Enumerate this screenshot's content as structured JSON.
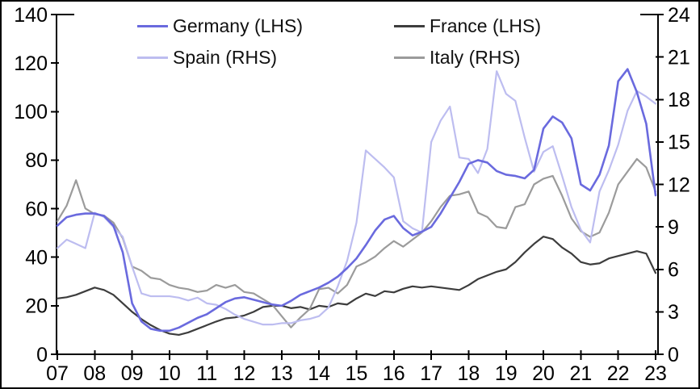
{
  "chart_data": {
    "type": "line",
    "title": "",
    "x_axis": {
      "tick_labels": [
        "07",
        "08",
        "09",
        "10",
        "11",
        "12",
        "13",
        "14",
        "15",
        "16",
        "17",
        "18",
        "19",
        "20",
        "21",
        "22",
        "23"
      ],
      "points_per_year": 4,
      "range_note": "quarterly points from 2007 to 2023"
    },
    "axes": {
      "left": {
        "min": 0,
        "max": 140,
        "ticks": [
          0,
          20,
          40,
          60,
          80,
          100,
          120,
          140
        ]
      },
      "right": {
        "min": 0,
        "max": 24,
        "ticks": [
          0,
          3,
          6,
          9,
          12,
          15,
          18,
          21,
          24
        ]
      }
    },
    "grid": false,
    "legend_position": "top",
    "series": [
      {
        "name": "germany",
        "label": "Germany (LHS)",
        "axis": "left",
        "color": "#6a6ade",
        "line_width": 2.6,
        "values": [
          53,
          56.5,
          57.5,
          58,
          58,
          57,
          53,
          42,
          21,
          13.5,
          10.5,
          9.7,
          9.7,
          11,
          13,
          15,
          16.5,
          19,
          21.5,
          23,
          23.5,
          22.5,
          21.5,
          20.5,
          20,
          22,
          24.5,
          26,
          27.5,
          29.5,
          32,
          35.5,
          39.5,
          45,
          51,
          55.5,
          57,
          52,
          49,
          50.5,
          52.5,
          58,
          64.5,
          71,
          78.5,
          80,
          79,
          75.5,
          74,
          73.5,
          72.5,
          76,
          93,
          98,
          95.5,
          89,
          70,
          67.5,
          74,
          86,
          112.5,
          117.5,
          108,
          95,
          65.5
        ]
      },
      {
        "name": "france",
        "label": "France (LHS)",
        "axis": "left",
        "color": "#3d3d3d",
        "line_width": 2.2,
        "values": [
          23,
          23.5,
          24.5,
          26,
          27.5,
          26.5,
          24.5,
          21,
          17.5,
          14.5,
          12,
          10,
          8.5,
          8,
          9,
          10.5,
          12,
          13.5,
          14.8,
          15.2,
          16,
          17.5,
          19.5,
          20,
          20,
          19,
          19.5,
          18.5,
          20,
          19.5,
          21,
          20.5,
          23,
          25,
          24,
          26,
          25.5,
          27,
          28,
          27.5,
          28,
          27.5,
          27,
          26.5,
          28.5,
          31,
          32.5,
          34,
          35,
          38,
          42,
          45.5,
          48.5,
          47.5,
          44,
          41.5,
          38,
          37,
          37.5,
          39.5,
          40.5,
          41.5,
          42.5,
          41.5,
          33.5
        ]
      },
      {
        "name": "spain",
        "label": "Spain (RHS)",
        "axis": "right",
        "color": "#bdbdf0",
        "line_width": 2.2,
        "values": [
          7.5,
          8.1,
          7.8,
          7.5,
          10,
          9.7,
          9,
          8.3,
          6.2,
          4.3,
          4.1,
          4.1,
          4.1,
          4,
          3.8,
          4,
          3.6,
          3.5,
          3.2,
          2.8,
          2.5,
          2.3,
          2.1,
          2.1,
          2.2,
          2.2,
          2.4,
          2.5,
          2.7,
          3.3,
          4.8,
          6.6,
          9.3,
          14.4,
          13.8,
          13.2,
          12.5,
          9.4,
          8.9,
          8.6,
          15,
          16.5,
          17.5,
          13.9,
          13.8,
          12.8,
          14.5,
          20,
          18.4,
          17.9,
          15.3,
          12.9,
          14.3,
          14.7,
          12.6,
          10.4,
          8.8,
          7.9,
          11.5,
          13,
          14.8,
          17.2,
          18.6,
          18.2,
          17.7
        ]
      },
      {
        "name": "italy",
        "label": "Italy (RHS)",
        "axis": "right",
        "color": "#9b9b9b",
        "line_width": 2.2,
        "values": [
          9.4,
          10.5,
          12.3,
          10.3,
          9.9,
          9.8,
          9.3,
          8.2,
          6.2,
          5.9,
          5.4,
          5.3,
          4.9,
          4.7,
          4.6,
          4.4,
          4.5,
          4.9,
          4.7,
          4.9,
          4.4,
          4.3,
          3.9,
          3.5,
          2.7,
          1.9,
          2.6,
          3.2,
          4.6,
          4.7,
          4.3,
          4.9,
          6.2,
          6.5,
          6.9,
          7.5,
          8,
          7.6,
          8.1,
          8.6,
          9.4,
          10.4,
          11.2,
          11.3,
          11.5,
          10,
          9.7,
          9,
          8.9,
          10.4,
          10.6,
          12,
          12.4,
          12.6,
          11.2,
          9.6,
          8.7,
          8.3,
          8.6,
          10,
          12,
          12.9,
          13.8,
          13.2,
          11.5
        ]
      }
    ]
  }
}
